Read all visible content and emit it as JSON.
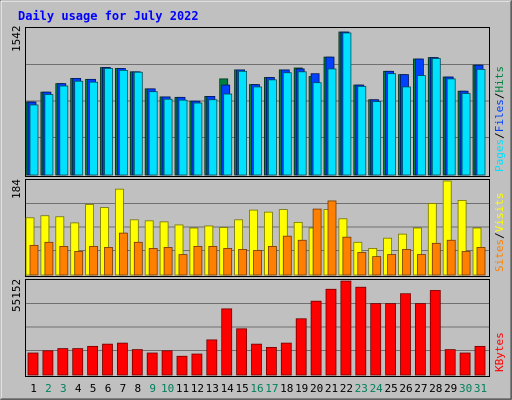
{
  "title": "Daily usage for July 2022",
  "colors": {
    "background": "#c0c0c0",
    "title": "#0000ff",
    "hits": "#008040",
    "files": "#0040ff",
    "pages": "#00e0ff",
    "visits": "#ffff00",
    "sites": "#ff8000",
    "kbytes": "#ff0000",
    "weekend_day": "#00805c",
    "weekday": "#000000"
  },
  "chart_data": [
    {
      "type": "bar",
      "panel": "top",
      "ymax_label": "1542",
      "ylim": [
        0,
        1542
      ],
      "categories": [
        "1",
        "2",
        "3",
        "4",
        "5",
        "6",
        "7",
        "8",
        "9",
        "10",
        "11",
        "12",
        "13",
        "14",
        "15",
        "16",
        "17",
        "18",
        "19",
        "20",
        "21",
        "22",
        "23",
        "24",
        "25",
        "26",
        "27",
        "28",
        "29",
        "30",
        "31"
      ],
      "legend": [
        "Pages",
        "/",
        "Files",
        "/",
        "Hits"
      ],
      "legend_colors": [
        "#00e0ff",
        "#000000",
        "#0040ff",
        "#000000",
        "#008040"
      ],
      "series": [
        {
          "name": "Hits",
          "values": [
            770,
            875,
            965,
            1020,
            1010,
            1135,
            1125,
            1090,
            910,
            825,
            820,
            780,
            830,
            1015,
            1110,
            955,
            1030,
            1110,
            1130,
            1040,
            1245,
            1510,
            950,
            795,
            1095,
            1060,
            1225,
            1240,
            1035,
            885,
            1160
          ]
        },
        {
          "name": "Files",
          "values": [
            770,
            875,
            965,
            1020,
            1010,
            1135,
            1125,
            1090,
            910,
            825,
            820,
            780,
            830,
            950,
            1110,
            955,
            1030,
            1110,
            1120,
            1070,
            1245,
            1510,
            950,
            795,
            1095,
            1060,
            1225,
            1240,
            1035,
            885,
            1160
          ]
        },
        {
          "name": "Pages",
          "values": [
            740,
            850,
            940,
            990,
            980,
            1125,
            1105,
            1085,
            880,
            800,
            790,
            760,
            795,
            855,
            1095,
            930,
            1005,
            1080,
            1090,
            975,
            1120,
            1500,
            935,
            775,
            1070,
            930,
            1050,
            1230,
            1015,
            860,
            1115
          ]
        }
      ]
    },
    {
      "type": "bar",
      "panel": "middle",
      "ymax_label": "184",
      "ylim": [
        0,
        184
      ],
      "categories": [
        "1",
        "2",
        "3",
        "4",
        "5",
        "6",
        "7",
        "8",
        "9",
        "10",
        "11",
        "12",
        "13",
        "14",
        "15",
        "16",
        "17",
        "18",
        "19",
        "20",
        "21",
        "22",
        "23",
        "24",
        "25",
        "26",
        "27",
        "28",
        "29",
        "30",
        "31"
      ],
      "legend": [
        "Sites",
        "/",
        "Visits"
      ],
      "legend_colors": [
        "#ff8000",
        "#000000",
        "#ffff00"
      ],
      "series": [
        {
          "name": "Visits",
          "values": [
            112,
            116,
            114,
            102,
            138,
            132,
            168,
            108,
            106,
            104,
            98,
            92,
            96,
            93,
            108,
            127,
            123,
            128,
            103,
            92,
            128,
            110,
            64,
            52,
            72,
            80,
            92,
            140,
            184,
            146,
            92
          ]
        },
        {
          "name": "Sites",
          "values": [
            58,
            64,
            56,
            46,
            56,
            54,
            82,
            64,
            52,
            54,
            40,
            56,
            56,
            52,
            50,
            48,
            56,
            76,
            68,
            129,
            145,
            74,
            44,
            36,
            40,
            50,
            40,
            62,
            68,
            46,
            54
          ]
        }
      ]
    },
    {
      "type": "bar",
      "panel": "bottom",
      "ymax_label": "55152",
      "ylim": [
        0,
        55152
      ],
      "categories": [
        "1",
        "2",
        "3",
        "4",
        "5",
        "6",
        "7",
        "8",
        "9",
        "10",
        "11",
        "12",
        "13",
        "14",
        "15",
        "16",
        "17",
        "18",
        "19",
        "20",
        "21",
        "22",
        "23",
        "24",
        "25",
        "26",
        "27",
        "28",
        "29",
        "30",
        "31"
      ],
      "legend": [
        "KBytes"
      ],
      "legend_colors": [
        "#ff0000"
      ],
      "series": [
        {
          "name": "KBytes",
          "values": [
            12900,
            14200,
            15500,
            15500,
            16800,
            18100,
            18700,
            14900,
            12900,
            14200,
            11000,
            12300,
            20600,
            38800,
            27100,
            18100,
            16200,
            18700,
            33000,
            43300,
            50300,
            55100,
            51500,
            41900,
            41900,
            47700,
            41900,
            49600,
            14900,
            12900,
            16800
          ]
        }
      ]
    }
  ]
}
